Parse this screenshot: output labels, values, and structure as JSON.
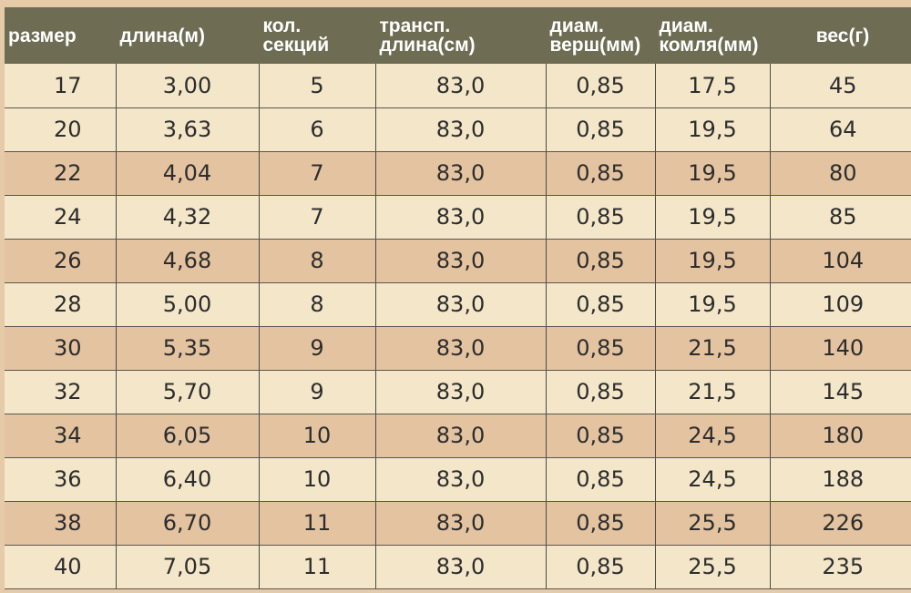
{
  "table": {
    "headers": [
      "размер",
      "длина(м)",
      "кол.\nсекций",
      "трансп.\nдлина(см)",
      "диам.\nверш(мм)",
      "диам.\nкомля(мм)",
      "вес(г)"
    ],
    "rows": [
      [
        "17",
        "3,00",
        "5",
        "83,0",
        "0,85",
        "17,5",
        "45"
      ],
      [
        "20",
        "3,63",
        "6",
        "83,0",
        "0,85",
        "19,5",
        "64"
      ],
      [
        "22",
        "4,04",
        "7",
        "83,0",
        "0,85",
        "19,5",
        "80"
      ],
      [
        "24",
        "4,32",
        "7",
        "83,0",
        "0,85",
        "19,5",
        "85"
      ],
      [
        "26",
        "4,68",
        "8",
        "83,0",
        "0,85",
        "19,5",
        "104"
      ],
      [
        "28",
        "5,00",
        "8",
        "83,0",
        "0,85",
        "19,5",
        "109"
      ],
      [
        "30",
        "5,35",
        "9",
        "83,0",
        "0,85",
        "21,5",
        "140"
      ],
      [
        "32",
        "5,70",
        "9",
        "83,0",
        "0,85",
        "21,5",
        "145"
      ],
      [
        "34",
        "6,05",
        "10",
        "83,0",
        "0,85",
        "24,5",
        "180"
      ],
      [
        "36",
        "6,40",
        "10",
        "83,0",
        "0,85",
        "24,5",
        "188"
      ],
      [
        "38",
        "6,70",
        "11",
        "83,0",
        "0,85",
        "25,5",
        "226"
      ],
      [
        "40",
        "7,05",
        "11",
        "83,0",
        "0,85",
        "25,5",
        "235"
      ]
    ],
    "row_shading": [
      "light",
      "light",
      "dark",
      "light",
      "dark",
      "light",
      "dark",
      "light",
      "dark",
      "light",
      "dark",
      "light"
    ]
  },
  "colors": {
    "header_bg": "#6e6d53",
    "header_text": "#ffffff",
    "row_light": "#f4e6c9",
    "row_dark": "#e3c3a0",
    "page_bg": "#e6cba9"
  }
}
